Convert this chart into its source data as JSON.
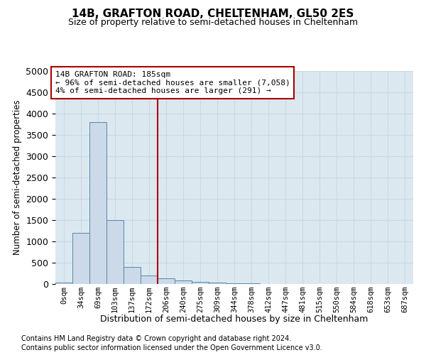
{
  "title1": "14B, GRAFTON ROAD, CHELTENHAM, GL50 2ES",
  "title2": "Size of property relative to semi-detached houses in Cheltenham",
  "xlabel": "Distribution of semi-detached houses by size in Cheltenham",
  "ylabel": "Number of semi-detached properties",
  "footnote1": "Contains HM Land Registry data © Crown copyright and database right 2024.",
  "footnote2": "Contains public sector information licensed under the Open Government Licence v3.0.",
  "bar_labels": [
    "0sqm",
    "34sqm",
    "69sqm",
    "103sqm",
    "137sqm",
    "172sqm",
    "206sqm",
    "240sqm",
    "275sqm",
    "309sqm",
    "344sqm",
    "378sqm",
    "412sqm",
    "447sqm",
    "481sqm",
    "515sqm",
    "550sqm",
    "584sqm",
    "618sqm",
    "653sqm",
    "687sqm"
  ],
  "bar_values": [
    30,
    1200,
    3800,
    1500,
    400,
    200,
    130,
    80,
    55,
    30,
    15,
    10,
    8,
    5,
    3,
    2,
    2,
    1,
    1,
    1,
    1
  ],
  "bar_color": "#ccd9e8",
  "bar_edge_color": "#5588aa",
  "vline_x": 5.5,
  "vline_color": "#aa0000",
  "annotation_line1": "14B GRAFTON ROAD: 185sqm",
  "annotation_line2": "← 96% of semi-detached houses are smaller (7,058)",
  "annotation_line3": "4% of semi-detached houses are larger (291) →",
  "annotation_box_color": "#aa0000",
  "ylim": [
    0,
    5000
  ],
  "yticks": [
    0,
    500,
    1000,
    1500,
    2000,
    2500,
    3000,
    3500,
    4000,
    4500,
    5000
  ],
  "grid_color": "#c8d8e8",
  "bg_color": "#dce8f0"
}
